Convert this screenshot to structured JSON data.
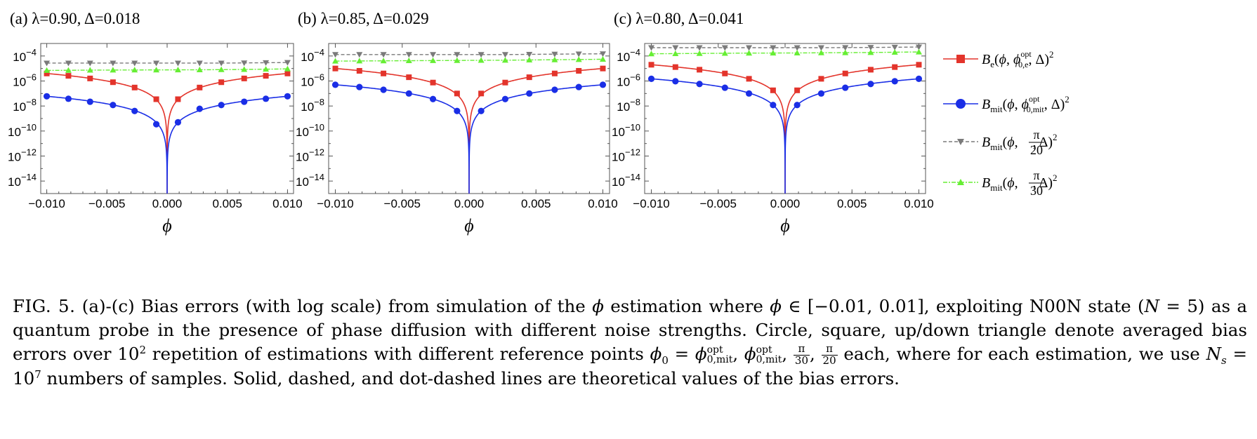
{
  "colors": {
    "red": "#e3342b",
    "blue": "#1a2ee6",
    "gray": "#7a7a7a",
    "green": "#66ee33"
  },
  "chart_data": [
    {
      "type": "line",
      "title": "(a) λ=0.90, Δ=0.018",
      "xlabel": "ϕ",
      "ylabel": "",
      "xlim": [
        -0.0105,
        0.0105
      ],
      "ylim": [
        1e-15,
        0.001
      ],
      "y_scale": "log",
      "xticks": [
        "−0.010",
        "−0.005",
        "0.000",
        "0.005",
        "0.010"
      ],
      "yticks": [
        "10−4",
        "10−6",
        "10−8",
        "10−10",
        "10−12",
        "10−14"
      ],
      "series": [
        {
          "name": "Be",
          "marker": "square",
          "color": "red",
          "x": [
            -0.01,
            -0.0082,
            -0.0064,
            -0.0045,
            -0.0027,
            -0.0009,
            0.0009,
            0.0027,
            0.0045,
            0.0064,
            0.0082,
            0.01
          ],
          "y": [
            4e-06,
            2.6e-06,
            1.6e-06,
            8e-07,
            3e-07,
            3.5e-08,
            3.5e-08,
            3e-07,
            8e-07,
            1.6e-06,
            2.6e-06,
            4e-06
          ]
        },
        {
          "name": "Bmit opt",
          "marker": "circle",
          "color": "blue",
          "x": [
            -0.01,
            -0.0082,
            -0.0064,
            -0.0045,
            -0.0027,
            -0.0009,
            0.0009,
            0.0027,
            0.0045,
            0.0064,
            0.0082,
            0.01
          ],
          "y": [
            6e-08,
            3.8e-08,
            2.2e-08,
            1.2e-08,
            4e-09,
            3.5e-10,
            5e-10,
            6e-09,
            1.2e-08,
            2.2e-08,
            3.8e-08,
            6e-08
          ]
        },
        {
          "name": "Bmit pi/20",
          "marker": "triangle-down",
          "color": "gray",
          "x": [
            -0.01,
            -0.0082,
            -0.0064,
            -0.0045,
            -0.0027,
            -0.0009,
            0.0009,
            0.0027,
            0.0045,
            0.0064,
            0.0082,
            0.01
          ],
          "y": [
            2.7e-05,
            2.7e-05,
            2.7e-05,
            2.7e-05,
            2.7e-05,
            2.7e-05,
            2.7e-05,
            2.7e-05,
            2.7e-05,
            2.8e-05,
            2.9e-05,
            3e-05
          ]
        },
        {
          "name": "Bmit pi/30",
          "marker": "triangle-up",
          "color": "green",
          "x": [
            -0.01,
            -0.0082,
            -0.0064,
            -0.0045,
            -0.0027,
            -0.0009,
            0.0009,
            0.0027,
            0.0045,
            0.0064,
            0.0082,
            0.01
          ],
          "y": [
            7e-06,
            7.2e-06,
            7.4e-06,
            7.5e-06,
            7.6e-06,
            7.7e-06,
            7.8e-06,
            7.9e-06,
            8.1e-06,
            8.4e-06,
            8.8e-06,
            9.3e-06
          ]
        }
      ]
    },
    {
      "type": "line",
      "title": "(b) λ=0.85, Δ=0.029",
      "xlabel": "ϕ",
      "ylabel": "",
      "xlim": [
        -0.0105,
        0.0105
      ],
      "ylim": [
        1e-15,
        0.001
      ],
      "y_scale": "log",
      "xticks": [
        "−0.010",
        "−0.005",
        "0.000",
        "0.005",
        "0.010"
      ],
      "yticks": [
        "10−4",
        "10−6",
        "10−8",
        "10−10",
        "10−12",
        "10−14"
      ],
      "series": [
        {
          "name": "Be",
          "marker": "square",
          "color": "red",
          "x": [
            -0.01,
            -0.0082,
            -0.0064,
            -0.0045,
            -0.0027,
            -0.0009,
            0.0009,
            0.0027,
            0.0045,
            0.0064,
            0.0082,
            0.01
          ],
          "y": [
            1e-05,
            6.5e-06,
            4e-06,
            2e-06,
            7.5e-07,
            1e-07,
            1e-07,
            7.5e-07,
            2e-06,
            4e-06,
            6.5e-06,
            1e-05
          ]
        },
        {
          "name": "Bmit opt",
          "marker": "circle",
          "color": "blue",
          "x": [
            -0.01,
            -0.0082,
            -0.0064,
            -0.0045,
            -0.0027,
            -0.0009,
            0.0009,
            0.0027,
            0.0045,
            0.0064,
            0.0082,
            0.01
          ],
          "y": [
            5e-07,
            3.3e-07,
            2e-07,
            1e-07,
            3.6e-08,
            4e-09,
            4e-09,
            3.6e-08,
            1e-07,
            2e-07,
            3.3e-07,
            5e-07
          ]
        },
        {
          "name": "Bmit pi/20",
          "marker": "triangle-down",
          "color": "gray",
          "x": [
            -0.01,
            -0.0082,
            -0.0064,
            -0.0045,
            -0.0027,
            -0.0009,
            0.0009,
            0.0027,
            0.0045,
            0.0064,
            0.0082,
            0.01
          ],
          "y": [
            0.00013,
            0.00013,
            0.00013,
            0.00013,
            0.00013,
            0.00013,
            0.00013,
            0.00013,
            0.000135,
            0.00014,
            0.000145,
            0.00015
          ]
        },
        {
          "name": "Bmit pi/30",
          "marker": "triangle-up",
          "color": "green",
          "x": [
            -0.01,
            -0.0082,
            -0.0064,
            -0.0045,
            -0.0027,
            -0.0009,
            0.0009,
            0.0027,
            0.0045,
            0.0064,
            0.0082,
            0.01
          ],
          "y": [
            3.9e-05,
            4e-05,
            4.1e-05,
            4.2e-05,
            4.3e-05,
            4.4e-05,
            4.5e-05,
            4.6e-05,
            4.8e-05,
            5e-05,
            5.2e-05,
            5.5e-05
          ]
        }
      ]
    },
    {
      "type": "line",
      "title": "(c) λ=0.80, Δ=0.041",
      "xlabel": "ϕ",
      "ylabel": "",
      "xlim": [
        -0.0105,
        0.0105
      ],
      "ylim": [
        1e-15,
        0.001
      ],
      "y_scale": "log",
      "xticks": [
        "−0.010",
        "−0.005",
        "0.000",
        "0.005",
        "0.010"
      ],
      "yticks": [
        "10−4",
        "10−6",
        "10−8",
        "10−10",
        "10−12",
        "10−14"
      ],
      "series": [
        {
          "name": "Be",
          "marker": "square",
          "color": "red",
          "x": [
            -0.01,
            -0.0082,
            -0.0064,
            -0.0045,
            -0.0027,
            -0.0009,
            0.0009,
            0.0027,
            0.0045,
            0.0064,
            0.0082,
            0.01
          ],
          "y": [
            2e-05,
            1.3e-05,
            8e-06,
            4e-06,
            1.5e-06,
            1.8e-07,
            1.8e-07,
            1.5e-06,
            4e-06,
            8e-06,
            1.3e-05,
            2e-05
          ]
        },
        {
          "name": "Bmit opt",
          "marker": "circle",
          "color": "blue",
          "x": [
            -0.01,
            -0.0082,
            -0.0064,
            -0.0045,
            -0.0027,
            -0.0009,
            0.0009,
            0.0027,
            0.0045,
            0.0064,
            0.0082,
            0.01
          ],
          "y": [
            1.5e-06,
            9.5e-07,
            5.8e-07,
            2.9e-07,
            1e-07,
            1.2e-08,
            1.2e-08,
            1e-07,
            2.9e-07,
            5.8e-07,
            9.5e-07,
            1.5e-06
          ]
        },
        {
          "name": "Bmit pi/20",
          "marker": "triangle-down",
          "color": "gray",
          "x": [
            -0.01,
            -0.0082,
            -0.0064,
            -0.0045,
            -0.0027,
            -0.0009,
            0.0009,
            0.0027,
            0.0045,
            0.0064,
            0.0082,
            0.01
          ],
          "y": [
            0.00046,
            0.00046,
            0.00046,
            0.00046,
            0.00046,
            0.00046,
            0.00046,
            0.00046,
            0.00047,
            0.00048,
            0.0005,
            0.00052
          ]
        },
        {
          "name": "Bmit pi/30",
          "marker": "triangle-up",
          "color": "green",
          "x": [
            -0.01,
            -0.0082,
            -0.0064,
            -0.0045,
            -0.0027,
            -0.0009,
            0.0009,
            0.0027,
            0.0045,
            0.0064,
            0.0082,
            0.01
          ],
          "y": [
            0.00015,
            0.000155,
            0.00016,
            0.000165,
            0.00017,
            0.000172,
            0.000175,
            0.00018,
            0.000185,
            0.00019,
            0.0002,
            0.00021
          ]
        }
      ]
    }
  ],
  "legend": {
    "items": [
      {
        "symbol": "B",
        "sub": "e",
        "args_pre": "(ϕ, ϕ",
        "sup2": "opt",
        "sub2": "0,e",
        "args_post": ", Δ)",
        "power": "2"
      },
      {
        "symbol": "B",
        "sub": "mit",
        "args_pre": "(ϕ, ϕ",
        "sup2": "opt",
        "sub2": "0,mit",
        "args_post": ", Δ)",
        "power": "2"
      },
      {
        "symbol": "B",
        "sub": "mit",
        "args_pre": "(ϕ, ",
        "frac_num": "π",
        "frac_den": "20",
        "args_post": ", Δ)",
        "power": "2"
      },
      {
        "symbol": "B",
        "sub": "mit",
        "args_pre": "(ϕ, ",
        "frac_num": "π",
        "frac_den": "30",
        "args_post": ", Δ)",
        "power": "2"
      }
    ]
  },
  "caption": {
    "label": "FIG. 5.",
    "t1": " (a)-(c) Bias errors (with log scale) from simulation of the ",
    "phi": "ϕ",
    "t2": " estimation where ",
    "t3": " ∈ [−0.01, 0.01], exploiting N00N state (",
    "N": "N",
    "t4": " = 5) as a quantum probe in the presence of phase diffusion with different noise strengths. Circle, square, up/down triangle denote averaged bias errors over 10",
    "pow2": "2",
    "t5": " repetition of estimations with different reference points ",
    "phi0": "ϕ",
    "sub0": "0",
    "t6": " = ",
    "opt": "opt",
    "mit": "0,mit",
    "comma": ", ",
    "pi": "π",
    "d30": "30",
    "d20": "20",
    "t7": " each, where for each estimation, we use ",
    "Ns": "N",
    "s": "s",
    "t8": " = 10",
    "pow7": "7",
    "t9": " numbers of samples. Solid, dashed, and dot-dashed lines are theoretical values of the bias errors."
  }
}
